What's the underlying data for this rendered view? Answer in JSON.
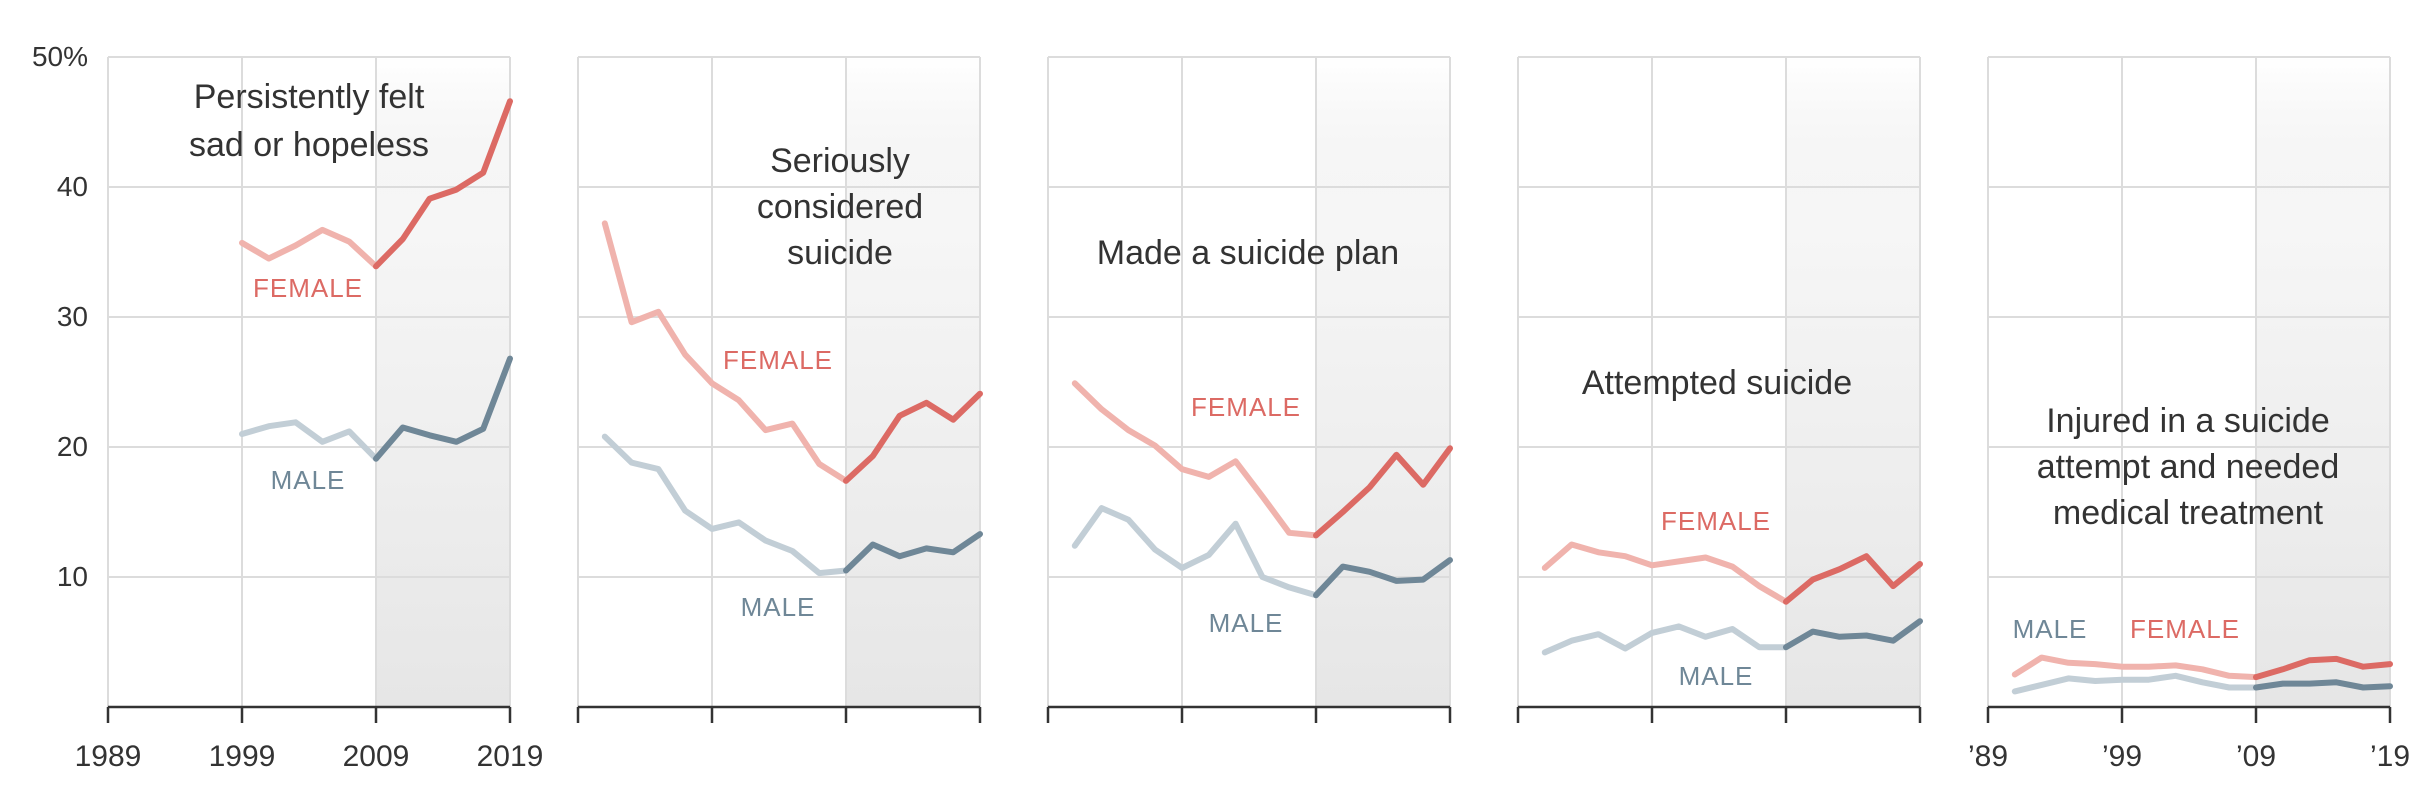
{
  "chart_data": {
    "type": "line",
    "y_axis": {
      "ticks": [
        10,
        20,
        30,
        40,
        50
      ],
      "tick_labels": [
        "10",
        "20",
        "30",
        "40",
        "50%"
      ],
      "ylim": [
        0,
        50
      ]
    },
    "x_axis": {
      "xlim": [
        1989,
        2019
      ],
      "tick_values": [
        1989,
        1999,
        2009,
        2019
      ]
    },
    "highlight_range": [
      2009,
      2019
    ],
    "colors": {
      "female_early": "#f0b3ad",
      "female_late": "#dc6a64",
      "male_early": "#c2ced6",
      "male_late": "#6f8797",
      "grid": "#dcdcdc",
      "axis": "#333333",
      "shade": "#e6e6e6",
      "text": "#333333"
    },
    "panels": [
      {
        "title": [
          "Persistently felt",
          "sad or hopeless"
        ],
        "x_tick_labels": [
          "1989",
          "1999",
          "2009",
          "2019"
        ],
        "female_label": "FEMALE",
        "male_label": "MALE",
        "female": {
          "x": [
            1999,
            2001,
            2003,
            2005,
            2007,
            2009,
            2011,
            2013,
            2015,
            2017,
            2019
          ],
          "y": [
            35.7,
            34.5,
            35.5,
            36.7,
            35.8,
            33.9,
            36.0,
            39.1,
            39.8,
            41.1,
            46.6
          ]
        },
        "male": {
          "x": [
            1999,
            2001,
            2003,
            2005,
            2007,
            2009,
            2011,
            2013,
            2015,
            2017,
            2019
          ],
          "y": [
            21.0,
            21.6,
            21.9,
            20.4,
            21.2,
            19.1,
            21.5,
            20.9,
            20.4,
            21.4,
            26.8
          ]
        }
      },
      {
        "title": [
          "Seriously",
          "considered",
          "suicide"
        ],
        "x_tick_labels": [
          "",
          "",
          "",
          ""
        ],
        "female_label": "FEMALE",
        "male_label": "MALE",
        "female": {
          "x": [
            1991,
            1993,
            1995,
            1997,
            1999,
            2001,
            2003,
            2005,
            2007,
            2009,
            2011,
            2013,
            2015,
            2017,
            2019
          ],
          "y": [
            37.2,
            29.6,
            30.4,
            27.1,
            24.9,
            23.6,
            21.3,
            21.8,
            18.7,
            17.4,
            19.3,
            22.4,
            23.4,
            22.1,
            24.1
          ]
        },
        "male": {
          "x": [
            1991,
            1993,
            1995,
            1997,
            1999,
            2001,
            2003,
            2005,
            2007,
            2009,
            2011,
            2013,
            2015,
            2017,
            2019
          ],
          "y": [
            20.8,
            18.8,
            18.3,
            15.1,
            13.7,
            14.2,
            12.8,
            12.0,
            10.3,
            10.5,
            12.5,
            11.6,
            12.2,
            11.9,
            13.3
          ]
        }
      },
      {
        "title": [
          "Made a suicide plan"
        ],
        "x_tick_labels": [
          "",
          "",
          "",
          ""
        ],
        "female_label": "FEMALE",
        "male_label": "MALE",
        "female": {
          "x": [
            1991,
            1993,
            1995,
            1997,
            1999,
            2001,
            2003,
            2005,
            2007,
            2009,
            2011,
            2013,
            2015,
            2017,
            2019
          ],
          "y": [
            24.9,
            22.9,
            21.3,
            20.1,
            18.3,
            17.7,
            18.9,
            16.2,
            13.4,
            13.2,
            15.0,
            16.9,
            19.4,
            17.1,
            19.9
          ]
        },
        "male": {
          "x": [
            1991,
            1993,
            1995,
            1997,
            1999,
            2001,
            2003,
            2005,
            2007,
            2009,
            2011,
            2013,
            2015,
            2017,
            2019
          ],
          "y": [
            12.4,
            15.3,
            14.4,
            12.1,
            10.7,
            11.7,
            14.1,
            10.0,
            9.2,
            8.6,
            10.8,
            10.4,
            9.7,
            9.8,
            11.3
          ]
        }
      },
      {
        "title": [
          "Attempted suicide"
        ],
        "x_tick_labels": [
          "",
          "",
          "",
          ""
        ],
        "female_label": "FEMALE",
        "male_label": "MALE",
        "female": {
          "x": [
            1991,
            1993,
            1995,
            1997,
            1999,
            2001,
            2003,
            2005,
            2007,
            2009,
            2011,
            2013,
            2015,
            2017,
            2019
          ],
          "y": [
            10.7,
            12.5,
            11.9,
            11.6,
            10.9,
            11.2,
            11.5,
            10.8,
            9.3,
            8.1,
            9.8,
            10.6,
            11.6,
            9.3,
            11.0
          ]
        },
        "male": {
          "x": [
            1991,
            1993,
            1995,
            1997,
            1999,
            2001,
            2003,
            2005,
            2007,
            2009,
            2011,
            2013,
            2015,
            2017,
            2019
          ],
          "y": [
            4.2,
            5.1,
            5.6,
            4.5,
            5.7,
            6.2,
            5.4,
            6.0,
            4.6,
            4.6,
            5.8,
            5.4,
            5.5,
            5.1,
            6.6
          ]
        }
      },
      {
        "title": [
          "Injured in a suicide",
          "attempt and needed",
          "medical treatment"
        ],
        "x_tick_labels": [
          "’89",
          "’99",
          "’09",
          "’19"
        ],
        "female_label": "FEMALE",
        "male_label": "MALE",
        "female": {
          "x": [
            1991,
            1993,
            1995,
            1997,
            1999,
            2001,
            2003,
            2005,
            2007,
            2009,
            2011,
            2013,
            2015,
            2017,
            2019
          ],
          "y": [
            2.5,
            3.8,
            3.4,
            3.3,
            3.1,
            3.1,
            3.2,
            2.9,
            2.4,
            2.3,
            2.9,
            3.6,
            3.7,
            3.1,
            3.3
          ]
        },
        "male": {
          "x": [
            1991,
            1993,
            1995,
            1997,
            1999,
            2001,
            2003,
            2005,
            2007,
            2009,
            2011,
            2013,
            2015,
            2017,
            2019
          ],
          "y": [
            1.2,
            1.7,
            2.2,
            2.0,
            2.1,
            2.1,
            2.4,
            1.9,
            1.5,
            1.5,
            1.8,
            1.8,
            1.9,
            1.5,
            1.6
          ]
        }
      }
    ]
  }
}
